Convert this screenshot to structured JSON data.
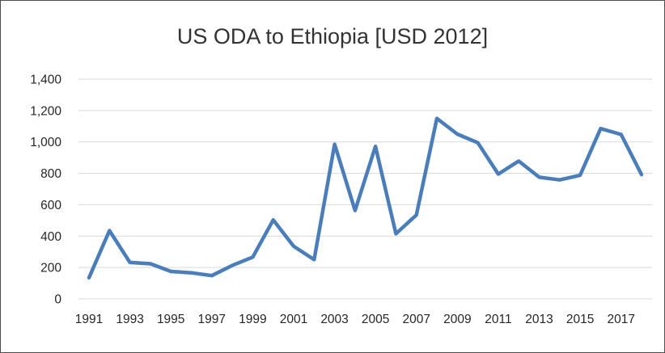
{
  "chart_data": {
    "type": "line",
    "title": "US ODA to Ethiopia [USD 2012]",
    "xlabel": "",
    "ylabel": "",
    "x": [
      1991,
      1992,
      1993,
      1994,
      1995,
      1996,
      1997,
      1998,
      1999,
      2000,
      2001,
      2002,
      2003,
      2004,
      2005,
      2006,
      2007,
      2008,
      2009,
      2010,
      2011,
      2012,
      2013,
      2014,
      2015,
      2016,
      2017,
      2018
    ],
    "x_tick_labels": [
      "1991",
      "1993",
      "1995",
      "1997",
      "1999",
      "2001",
      "2003",
      "2005",
      "2007",
      "2009",
      "2011",
      "2013",
      "2015",
      "2017"
    ],
    "series": [
      {
        "values": [
          135,
          435,
          232,
          224,
          175,
          166,
          148,
          213,
          266,
          503,
          335,
          250,
          985,
          563,
          972,
          415,
          535,
          1150,
          1050,
          995,
          795,
          878,
          775,
          758,
          788,
          1085,
          1048,
          792
        ],
        "color": "#4a7ebb"
      }
    ],
    "ylim": [
      0,
      1400
    ],
    "y_tick_labels": [
      "0",
      "200",
      "400",
      "600",
      "800",
      "1,000",
      "1,200",
      "1,400"
    ],
    "grid": true,
    "legend": "none"
  }
}
